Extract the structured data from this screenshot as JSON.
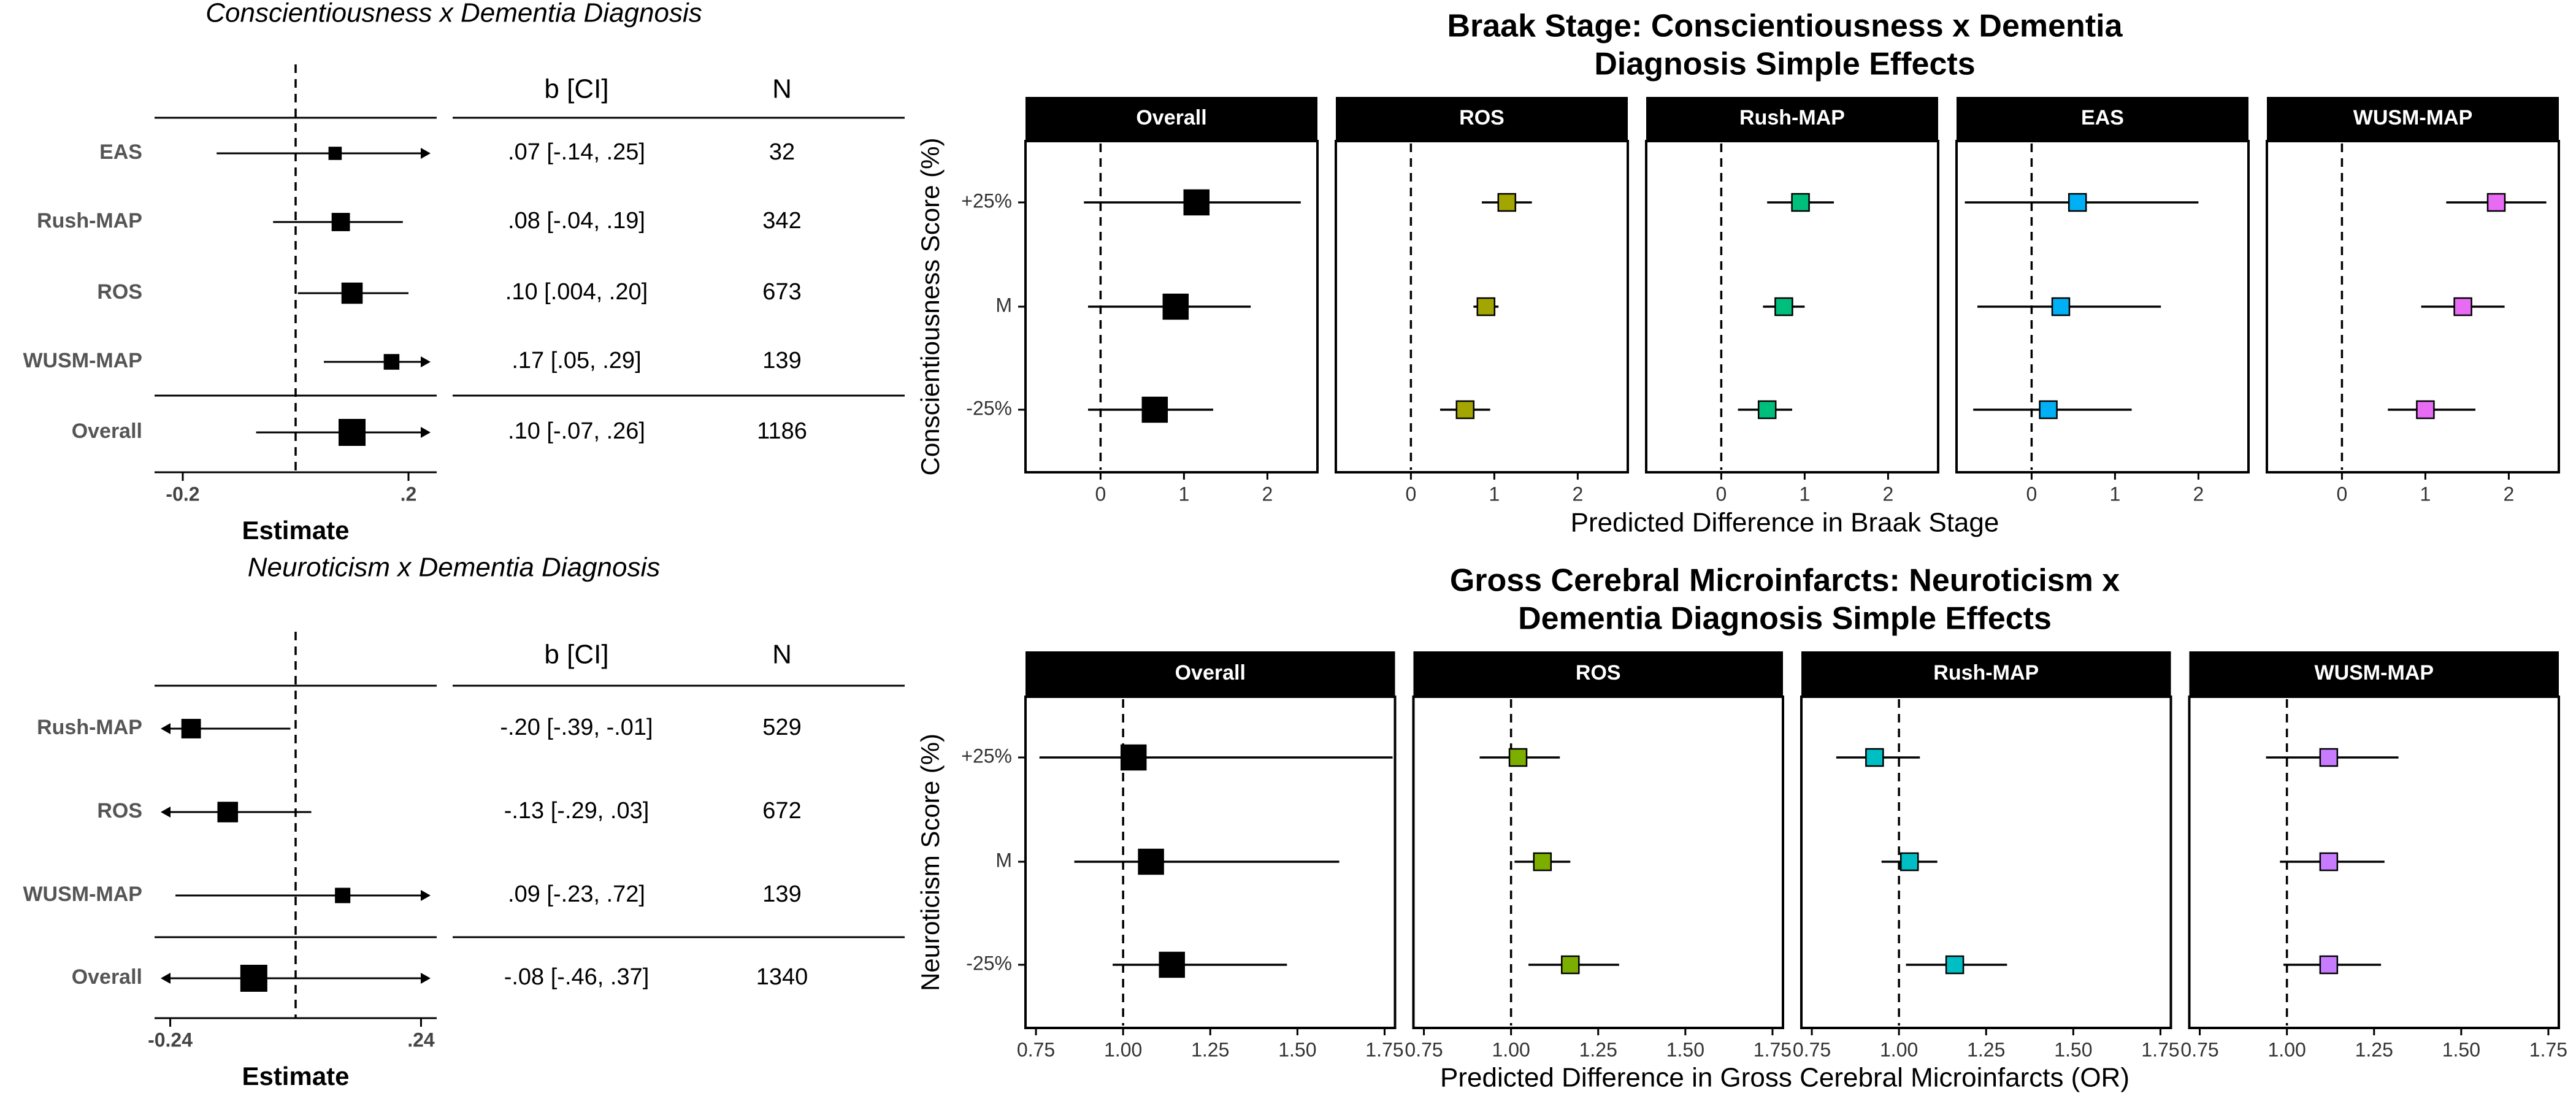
{
  "colors": {
    "black": "#000000",
    "ros": "#a3a500",
    "rush_map": "#00bf7d",
    "eas": "#00b0f6",
    "wusm_map": "#e76bf3",
    "ros_b": "#7cae00",
    "rush_map_b": "#00bfc4",
    "wusm_map_b": "#c77cff"
  },
  "chart_data": [
    {
      "type": "forest",
      "title": "Conscientiousness x Dementia Diagnosis",
      "col_headers": [
        "b [CI]",
        "N"
      ],
      "xlabel": "Estimate",
      "xticks": [
        "-0.2",
        ".2"
      ],
      "xtick_values": [
        -0.2,
        0.2
      ],
      "xlim": [
        -0.25,
        0.25
      ],
      "rows": [
        {
          "label": "EAS",
          "b": 0.07,
          "ci_low": -0.14,
          "ci_high": 0.25,
          "ci_text": ".07 [-.14, .25]",
          "n": "32",
          "weight": 32,
          "arrow_right": true
        },
        {
          "label": "Rush-MAP",
          "b": 0.08,
          "ci_low": -0.04,
          "ci_high": 0.19,
          "ci_text": ".08 [-.04, .19]",
          "n": "342",
          "weight": 342
        },
        {
          "label": "ROS",
          "b": 0.1,
          "ci_low": 0.004,
          "ci_high": 0.2,
          "ci_text": ".10 [.004, .20]",
          "n": "673",
          "weight": 673
        },
        {
          "label": "WUSM-MAP",
          "b": 0.17,
          "ci_low": 0.05,
          "ci_high": 0.29,
          "ci_text": ".17 [.05, .29]",
          "n": "139",
          "weight": 139,
          "arrow_right": true
        },
        {
          "label": "Overall",
          "b": 0.1,
          "ci_low": -0.07,
          "ci_high": 0.26,
          "ci_text": ".10 [-.07, .26]",
          "n": "1186",
          "weight": 1186,
          "arrow_right": true,
          "overall": true
        }
      ]
    },
    {
      "type": "forest",
      "title": "Neuroticism x Dementia Diagnosis",
      "col_headers": [
        "b [CI]",
        "N"
      ],
      "xlabel": "Estimate",
      "xticks": [
        "-0.24",
        ".24"
      ],
      "xtick_values": [
        -0.24,
        0.24
      ],
      "xlim": [
        -0.27,
        0.27
      ],
      "rows": [
        {
          "label": "Rush-MAP",
          "b": -0.2,
          "ci_low": -0.39,
          "ci_high": -0.01,
          "ci_text": "-.20 [-.39, -.01]",
          "n": "529",
          "weight": 529,
          "arrow_left": true
        },
        {
          "label": "ROS",
          "b": -0.13,
          "ci_low": -0.29,
          "ci_high": 0.03,
          "ci_text": "-.13 [-.29, .03]",
          "n": "672",
          "weight": 672,
          "arrow_left": true
        },
        {
          "label": "WUSM-MAP",
          "b": 0.09,
          "ci_low": -0.23,
          "ci_high": 0.72,
          "ci_text": ".09 [-.23, .72]",
          "n": "139",
          "weight": 139,
          "arrow_right": true
        },
        {
          "label": "Overall",
          "b": -0.08,
          "ci_low": -0.46,
          "ci_high": 0.37,
          "ci_text": "-.08 [-.46, .37]",
          "n": "1340",
          "weight": 1340,
          "arrow_left": true,
          "arrow_right": true,
          "overall": true
        }
      ]
    },
    {
      "type": "faceted-dot",
      "title": [
        "Braak Stage: Conscientiousness x Dementia",
        "Diagnosis Simple Effects"
      ],
      "ylabel": "Conscientiousness Score (%)",
      "xlabel": "Predicted Difference in Braak Stage",
      "categories": [
        "+25%",
        "M",
        "-25%"
      ],
      "xlim": [
        -0.9,
        2.6
      ],
      "xticks": [
        0,
        1,
        2
      ],
      "xtick_labels": [
        "0",
        "1",
        "2"
      ],
      "reference": 0,
      "facets": [
        {
          "name": "Overall",
          "color": "#000000",
          "big": true,
          "points": [
            {
              "cat": "+25%",
              "est": 1.15,
              "low": -0.2,
              "high": 2.4
            },
            {
              "cat": "M",
              "est": 0.9,
              "low": -0.15,
              "high": 1.8
            },
            {
              "cat": "-25%",
              "est": 0.65,
              "low": -0.15,
              "high": 1.35
            }
          ]
        },
        {
          "name": "ROS",
          "color": "#a3a500",
          "points": [
            {
              "cat": "+25%",
              "est": 1.15,
              "low": 0.85,
              "high": 1.45
            },
            {
              "cat": "M",
              "est": 0.9,
              "low": 0.75,
              "high": 1.05
            },
            {
              "cat": "-25%",
              "est": 0.65,
              "low": 0.35,
              "high": 0.95
            }
          ]
        },
        {
          "name": "Rush-MAP",
          "color": "#00bf7d",
          "points": [
            {
              "cat": "+25%",
              "est": 0.95,
              "low": 0.55,
              "high": 1.35
            },
            {
              "cat": "M",
              "est": 0.75,
              "low": 0.5,
              "high": 1.0
            },
            {
              "cat": "-25%",
              "est": 0.55,
              "low": 0.2,
              "high": 0.85
            }
          ]
        },
        {
          "name": "EAS",
          "color": "#00b0f6",
          "points": [
            {
              "cat": "+25%",
              "est": 0.55,
              "low": -0.8,
              "high": 2.0
            },
            {
              "cat": "M",
              "est": 0.35,
              "low": -0.65,
              "high": 1.55
            },
            {
              "cat": "-25%",
              "est": 0.2,
              "low": -0.7,
              "high": 1.2
            }
          ]
        },
        {
          "name": "WUSM-MAP",
          "color": "#e76bf3",
          "points": [
            {
              "cat": "+25%",
              "est": 1.85,
              "low": 1.25,
              "high": 2.45
            },
            {
              "cat": "M",
              "est": 1.45,
              "low": 0.95,
              "high": 1.95
            },
            {
              "cat": "-25%",
              "est": 1.0,
              "low": 0.55,
              "high": 1.6
            }
          ]
        }
      ]
    },
    {
      "type": "faceted-dot",
      "title": [
        "Gross Cerebral Microinfarcts: Neuroticism x",
        "Dementia Diagnosis Simple Effects"
      ],
      "ylabel": "Neuroticism Score (%)",
      "xlabel": "Predicted Difference in Gross Cerebral Microinfarcts (OR)",
      "categories": [
        "+25%",
        "M",
        "-25%"
      ],
      "xlim": [
        0.72,
        1.78
      ],
      "xticks": [
        0.75,
        1.0,
        1.25,
        1.5,
        1.75
      ],
      "xtick_labels": [
        "0.75",
        "1.00",
        "1.25",
        "1.50",
        "1.75"
      ],
      "reference": 1.0,
      "facets": [
        {
          "name": "Overall",
          "color": "#000000",
          "big": true,
          "points": [
            {
              "cat": "+25%",
              "est": 1.03,
              "low": 0.76,
              "high": 1.78
            },
            {
              "cat": "M",
              "est": 1.08,
              "low": 0.86,
              "high": 1.62
            },
            {
              "cat": "-25%",
              "est": 1.14,
              "low": 0.97,
              "high": 1.47
            }
          ]
        },
        {
          "name": "ROS",
          "color": "#7cae00",
          "points": [
            {
              "cat": "+25%",
              "est": 1.02,
              "low": 0.91,
              "high": 1.14
            },
            {
              "cat": "M",
              "est": 1.09,
              "low": 1.01,
              "high": 1.17
            },
            {
              "cat": "-25%",
              "est": 1.17,
              "low": 1.05,
              "high": 1.31
            }
          ]
        },
        {
          "name": "Rush-MAP",
          "color": "#00bfc4",
          "points": [
            {
              "cat": "+25%",
              "est": 0.93,
              "low": 0.82,
              "high": 1.06
            },
            {
              "cat": "M",
              "est": 1.03,
              "low": 0.95,
              "high": 1.11
            },
            {
              "cat": "-25%",
              "est": 1.16,
              "low": 1.02,
              "high": 1.31
            }
          ]
        },
        {
          "name": "WUSM-MAP",
          "color": "#c77cff",
          "points": [
            {
              "cat": "+25%",
              "est": 1.12,
              "low": 0.94,
              "high": 1.32
            },
            {
              "cat": "M",
              "est": 1.12,
              "low": 0.98,
              "high": 1.28
            },
            {
              "cat": "-25%",
              "est": 1.12,
              "low": 0.99,
              "high": 1.27
            }
          ]
        }
      ]
    }
  ]
}
